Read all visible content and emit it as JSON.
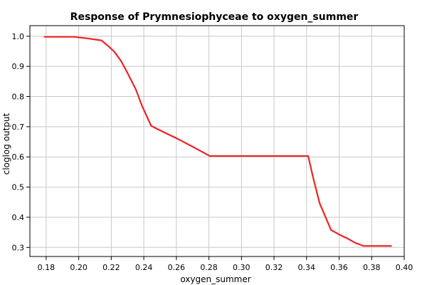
{
  "chart_data": {
    "type": "line",
    "title": "Response of Prymnesiophyceae to oxygen_summer",
    "xlabel": "oxygen_summer",
    "ylabel": "cloglog output",
    "xlim": [
      0.17,
      0.4
    ],
    "ylim": [
      0.27,
      1.035
    ],
    "x_ticks": [
      0.18,
      0.2,
      0.22,
      0.24,
      0.26,
      0.28,
      0.3,
      0.32,
      0.34,
      0.36,
      0.38,
      0.4
    ],
    "x_tick_labels": [
      "0.18",
      "0.20",
      "0.22",
      "0.24",
      "0.26",
      "0.28",
      "0.30",
      "0.32",
      "0.34",
      "0.36",
      "0.38",
      "0.40"
    ],
    "y_ticks": [
      0.3,
      0.4,
      0.5,
      0.6,
      0.7,
      0.8,
      0.9,
      1.0
    ],
    "y_tick_labels": [
      "0.3",
      "0.4",
      "0.5",
      "0.6",
      "0.7",
      "0.8",
      "0.9",
      "1.0"
    ],
    "grid": true,
    "series": [
      {
        "color": "#ee2222",
        "x": [
          0.179,
          0.197,
          0.205,
          0.214,
          0.218,
          0.222,
          0.226,
          0.23,
          0.235,
          0.239,
          0.2445,
          0.25,
          0.26,
          0.27,
          0.2805,
          0.3,
          0.32,
          0.341,
          0.344,
          0.348,
          0.355,
          0.36,
          0.365,
          0.37,
          0.375,
          0.392
        ],
        "y": [
          0.998,
          0.998,
          0.993,
          0.986,
          0.968,
          0.948,
          0.918,
          0.878,
          0.825,
          0.768,
          0.703,
          0.688,
          0.662,
          0.634,
          0.603,
          0.603,
          0.603,
          0.603,
          0.532,
          0.447,
          0.358,
          0.343,
          0.33,
          0.315,
          0.305,
          0.305
        ]
      }
    ]
  }
}
